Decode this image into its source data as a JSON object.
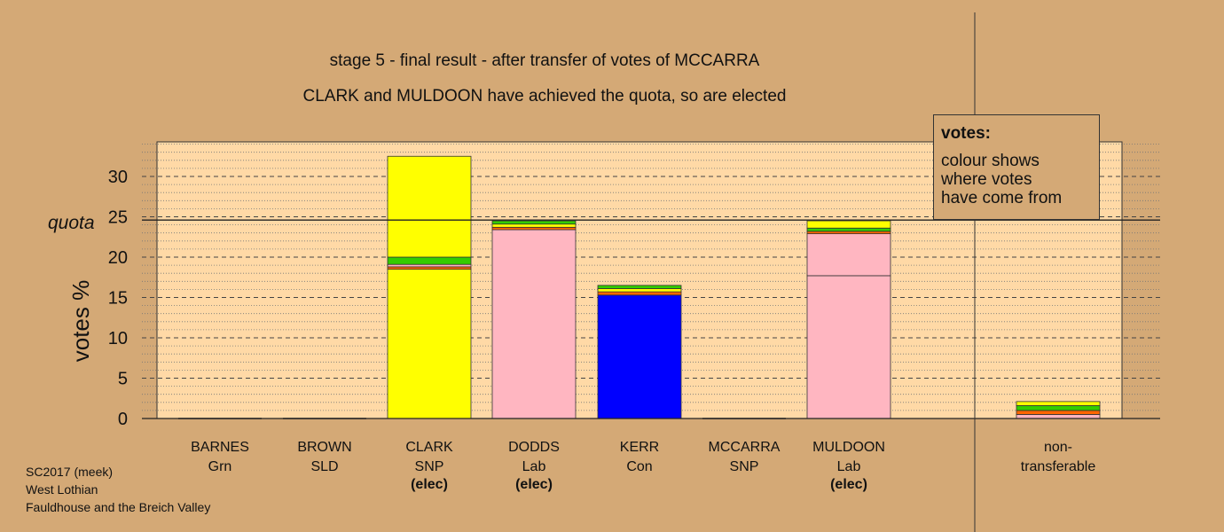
{
  "chart_data": {
    "type": "bar",
    "stacked": true,
    "title": "stage 5 - final result - after transfer of votes of MCCARRA",
    "subtitle": "CLARK and MULDOON have achieved the quota, so are elected",
    "ylabel": "votes %",
    "xlabel": "",
    "ylim": [
      0,
      34
    ],
    "yticks": [
      0,
      5,
      10,
      15,
      20,
      25,
      30
    ],
    "quota": {
      "label": "quota",
      "value": 24.6
    },
    "grid": true,
    "categories": [
      {
        "name": "BARNES",
        "party": "Grn",
        "status": ""
      },
      {
        "name": "BROWN",
        "party": "SLD",
        "status": ""
      },
      {
        "name": "CLARK",
        "party": "SNP",
        "status": "(elec)"
      },
      {
        "name": "DODDS",
        "party": "Lab",
        "status": "(elec)"
      },
      {
        "name": "KERR",
        "party": "Con",
        "status": ""
      },
      {
        "name": "MCCARRA",
        "party": "SNP",
        "status": ""
      },
      {
        "name": "MULDOON",
        "party": "Lab",
        "status": "(elec)"
      },
      {
        "name": "",
        "party": "",
        "status": ""
      },
      {
        "name": "non-",
        "party": "transferable",
        "status": ""
      }
    ],
    "segments": [
      [],
      [],
      [
        {
          "color": "#ffff00",
          "value": 18.5
        },
        {
          "color": "#ff6600",
          "value": 0.3
        },
        {
          "color": "#ffb6c1",
          "value": 0.3
        },
        {
          "color": "#33cc00",
          "value": 0.9
        },
        {
          "color": "#ffff00",
          "value": 12.5
        }
      ],
      [
        {
          "color": "#ffb6c1",
          "value": 23.4
        },
        {
          "color": "#ff6600",
          "value": 0.3
        },
        {
          "color": "#ffff00",
          "value": 0.4
        },
        {
          "color": "#33cc00",
          "value": 0.4
        }
      ],
      [
        {
          "color": "#0000ff",
          "value": 15.3
        },
        {
          "color": "#ff6600",
          "value": 0.4
        },
        {
          "color": "#ffff00",
          "value": 0.4
        },
        {
          "color": "#33cc00",
          "value": 0.4
        }
      ],
      [],
      [
        {
          "color": "#ffb6c1",
          "value": 17.7
        },
        {
          "color": "#ffb6c1",
          "value": 5.2
        },
        {
          "color": "#ff6600",
          "value": 0.3
        },
        {
          "color": "#33cc00",
          "value": 0.4
        },
        {
          "color": "#ffff00",
          "value": 0.9
        }
      ],
      [],
      [
        {
          "color": "#ffb6c1",
          "value": 0.5
        },
        {
          "color": "#ff6600",
          "value": 0.5
        },
        {
          "color": "#33cc00",
          "value": 0.6
        },
        {
          "color": "#ffff00",
          "value": 0.5
        }
      ]
    ]
  },
  "legend": {
    "title": "votes:",
    "lines": [
      "colour shows",
      "where votes",
      "have come from"
    ]
  },
  "source": {
    "line1": "SC2017 (meek)",
    "line2": "West Lothian",
    "line3": "Fauldhouse and the Breich Valley"
  },
  "colors": {
    "background": "#d4a976",
    "plot_area": "#ffd9a6"
  }
}
